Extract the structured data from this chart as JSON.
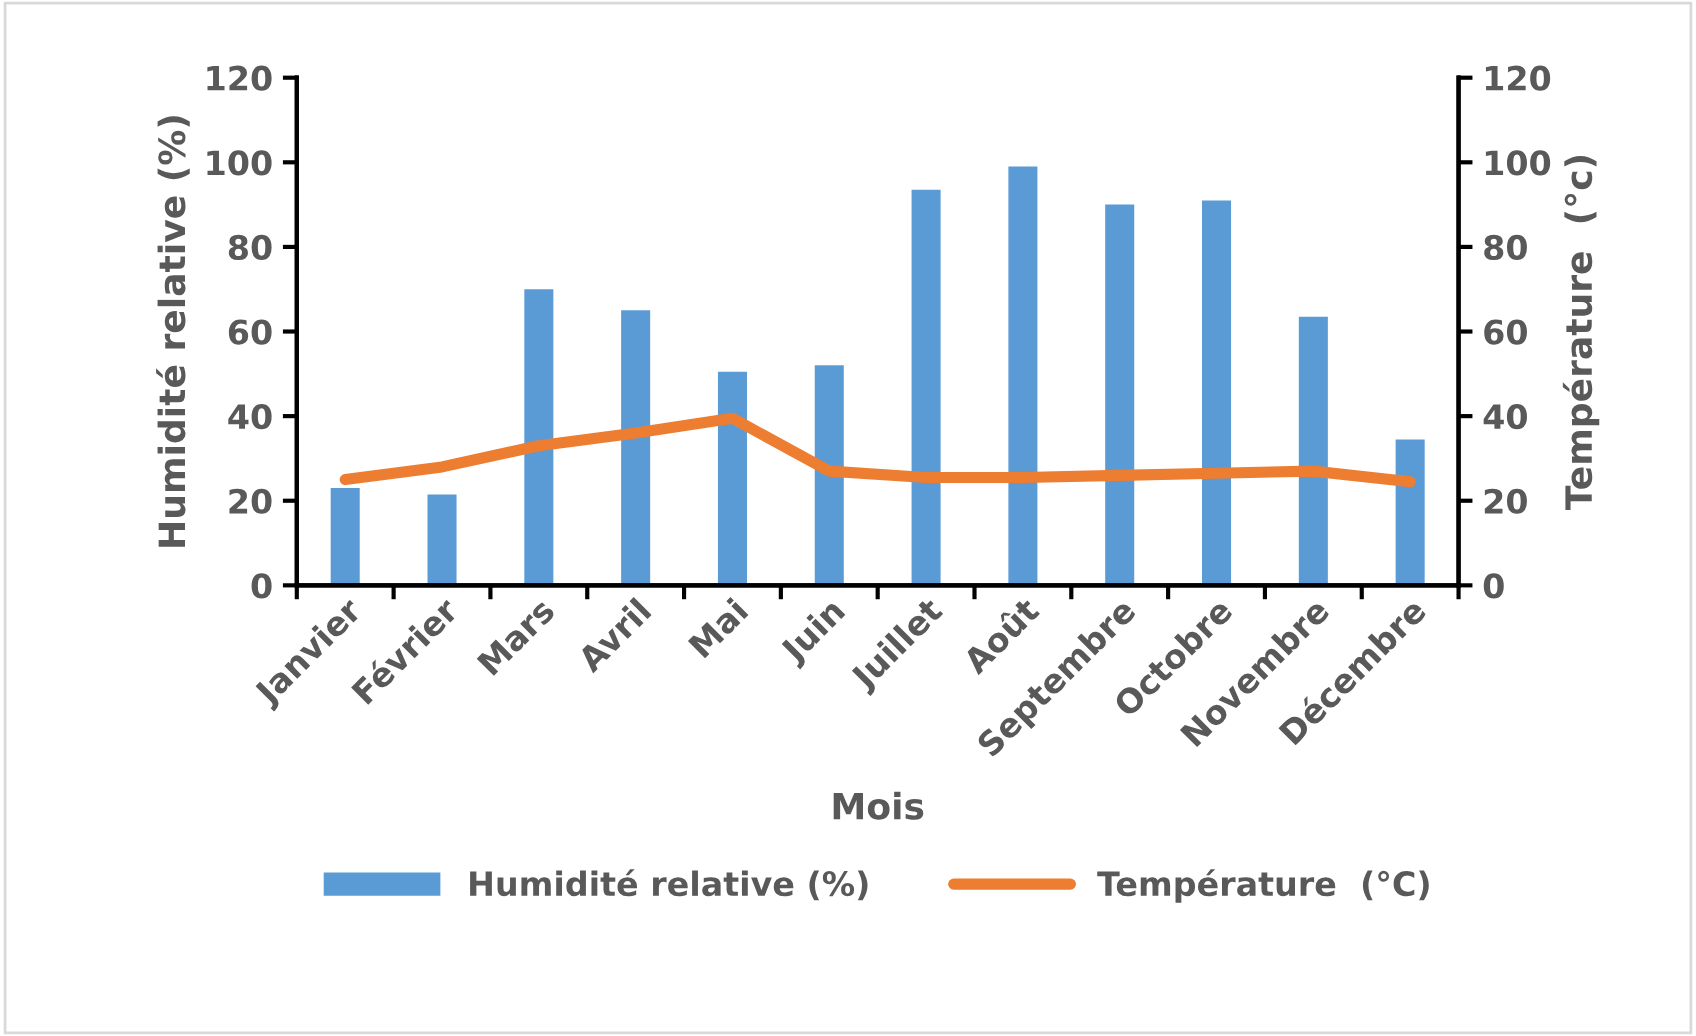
{
  "chart_data": {
    "type": "bar",
    "xlabel": "Mois",
    "ylabel": "Humidité relative (%)",
    "y2label": "Température  (°c)",
    "categories": [
      "Janvier",
      "Février",
      "Mars",
      "Avril",
      "Mai",
      "Juin",
      "Juillet",
      "Août",
      "Septembre",
      "Octobre",
      "Novembre",
      "Décembre"
    ],
    "series": [
      {
        "name": "Humidité relative (%)",
        "color": "#5b9bd5",
        "values": [
          23,
          21.5,
          70,
          65,
          50.5,
          52,
          93.5,
          99,
          90,
          91,
          63.5,
          34.5
        ]
      },
      {
        "name": "Température  (°C)",
        "type": "line",
        "axis": "y2",
        "color": "#ed7d31",
        "values": [
          25,
          28,
          33,
          36,
          39.5,
          27,
          25.5,
          25.5,
          26,
          26.5,
          27,
          24.5
        ]
      }
    ],
    "ylim": [
      0,
      120
    ],
    "yticks": [
      0,
      20,
      40,
      60,
      80,
      100,
      120
    ],
    "y2lim": [
      0,
      120
    ],
    "y2ticks": [
      0,
      20,
      40,
      60,
      80,
      100,
      120
    ],
    "grid": false,
    "legend": "bottom",
    "marker": "none",
    "line_style": "solid"
  }
}
